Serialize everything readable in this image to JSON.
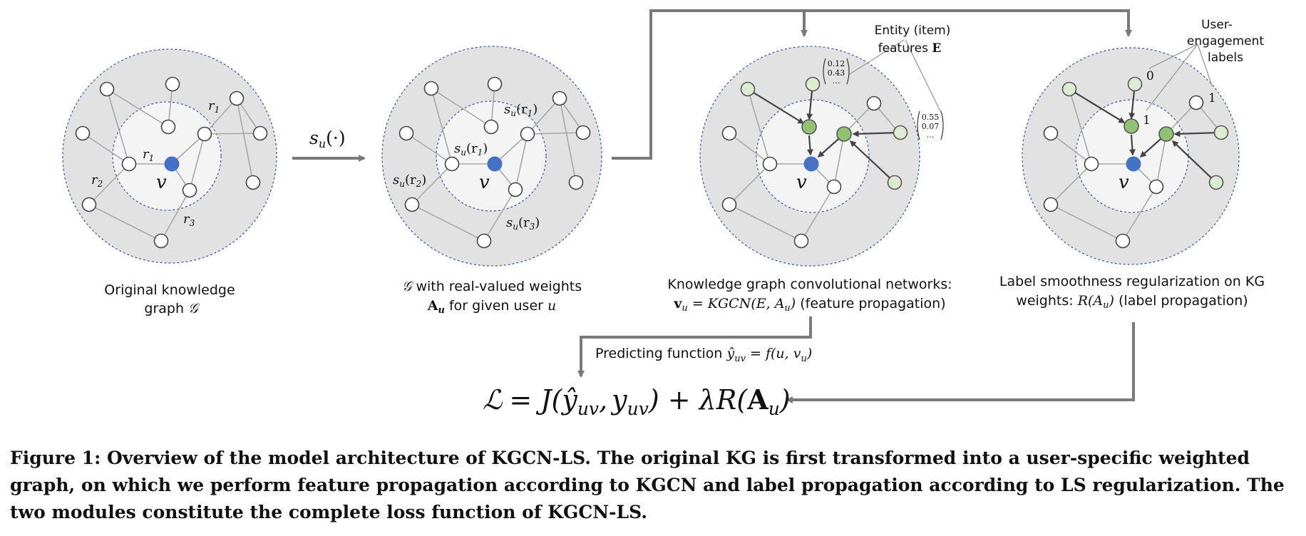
{
  "panels": {
    "original": {
      "line1": "Original knowledge",
      "line2_prefix": "graph",
      "line2_sym": "𝒢"
    },
    "weighted": {
      "line1_sym": "𝒢",
      "line1_rest": "with real-valued weights",
      "line2_bold": "A",
      "line2_sub": "u",
      "line2_rest": "for given user",
      "line2_var": "u"
    },
    "kgcn": {
      "line1": "Knowledge graph convolutional networks:",
      "line2_lhs": "v",
      "line2_lhs_sub": "u",
      "line2_mid": "= KGCN(E, A",
      "line2_mid_sub": "u",
      "line2_close": ")",
      "line2_rest": "(feature propagation)"
    },
    "ls": {
      "line1": "Label smoothness regularization on KG",
      "line2_prefix": "weights:",
      "line2_func": "R(A",
      "line2_sub": "u",
      "line2_close": ")",
      "line2_rest": "(label propagation)"
    }
  },
  "graph_labels": {
    "center": "v",
    "r1": "r",
    "r2": "r",
    "r3": "r",
    "sub1": "1",
    "sub2": "2",
    "sub3": "3",
    "su": "s",
    "su_sub": "u",
    "su_r1": "(r",
    "su_close": ")"
  },
  "arrow_label": {
    "s": "s",
    "sub": "u",
    "rest": "(·)"
  },
  "annotations": {
    "entity_line1": "Entity (item)",
    "entity_line2": "features",
    "entity_bold": "E",
    "vec1": [
      "0.12",
      "0.43",
      "…"
    ],
    "vec2": [
      "0.55",
      "0.07",
      "…"
    ],
    "user_line1": "User-",
    "user_line2": "engagement",
    "user_line3": "labels",
    "label0": "0",
    "label1a": "1",
    "label1b": "1"
  },
  "predicting": {
    "text": "Predicting function",
    "formula_lhs": "ŷ",
    "formula_sub": "uv",
    "formula_rest": "= f(u, v",
    "formula_sub2": "u",
    "formula_close": ")"
  },
  "loss": {
    "L": "ℒ",
    "eq": "= J(",
    "yhat": "ŷ",
    "sub1": "uv",
    "comma": ",",
    "y": "y",
    "sub2": "uv",
    "mid": ") + λR(",
    "A": "A",
    "sub3": "u",
    "close": ")"
  },
  "caption": "Figure 1: Overview of the model architecture of KGCN-LS. The original KG is first transformed into a user-specific weighted graph, on which we perform feature propagation according to KGCN and label propagation according to LS regularization. The two modules constitute the complete loss function of KGCN-LS.",
  "colors": {
    "center_node": "#4472c4",
    "green_dark": "#8fc273",
    "green_light": "#dbecd1",
    "outer_disc": "#e2e2e2",
    "inner_disc": "#f4f4f4",
    "arrow": "#7a7a7a",
    "dash": "#4a5ea8"
  }
}
